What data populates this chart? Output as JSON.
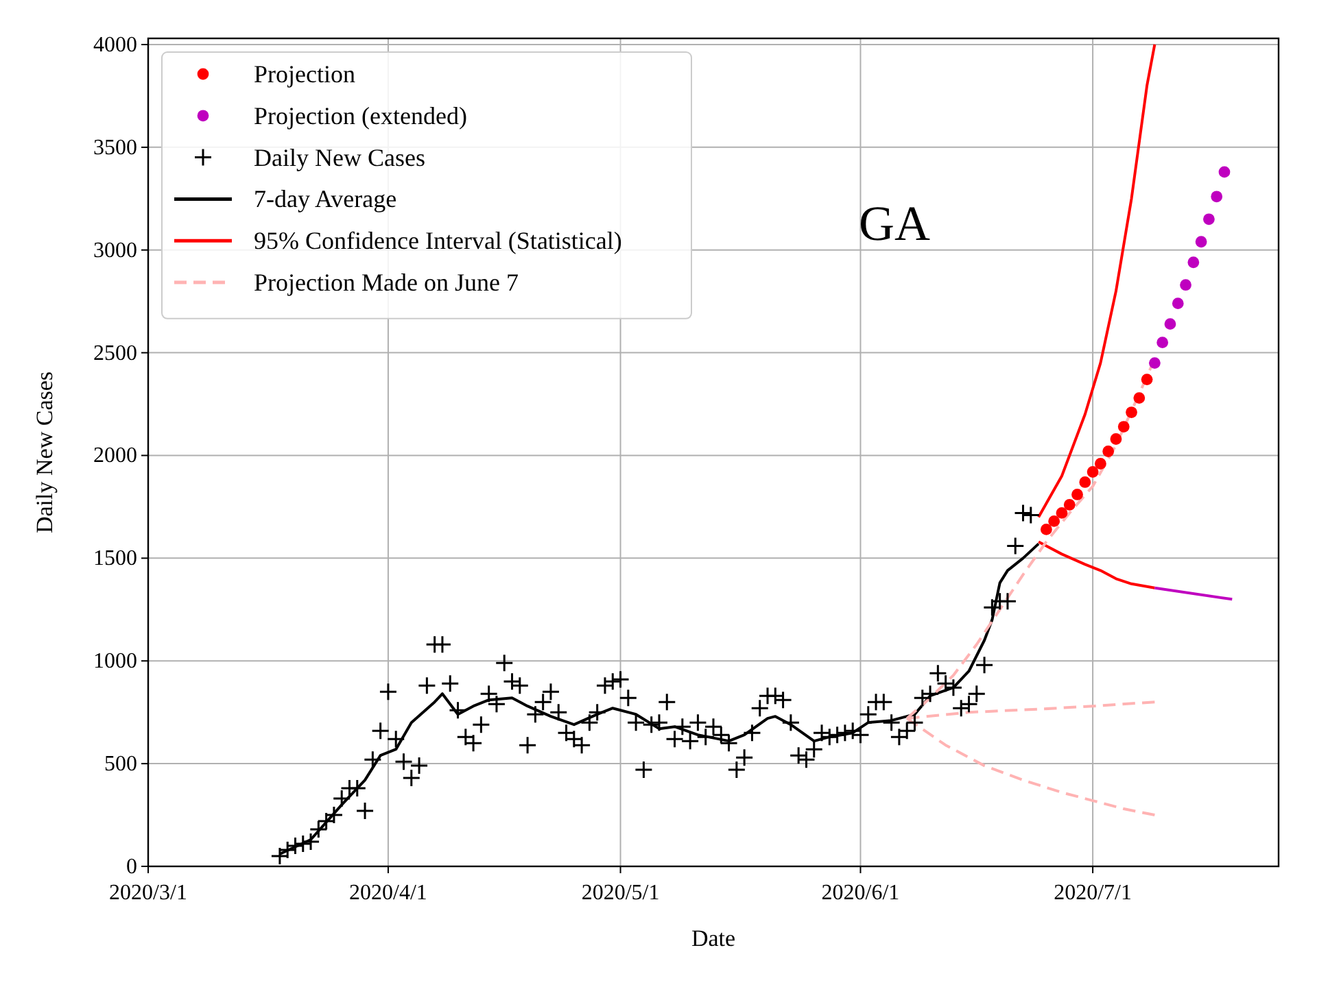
{
  "chart_data": {
    "type": "line",
    "xlabel": "Date",
    "ylabel": "Daily New Cases",
    "annotations": [
      "GA"
    ],
    "xlim": [
      "2020-03-01",
      "2020-07-25"
    ],
    "xticks": [
      {
        "value": "2020-03-01",
        "label": "2020/3/1"
      },
      {
        "value": "2020-04-01",
        "label": "2020/4/1"
      },
      {
        "value": "2020-05-01",
        "label": "2020/5/1"
      },
      {
        "value": "2020-06-01",
        "label": "2020/6/1"
      },
      {
        "value": "2020-07-01",
        "label": "2020/7/1"
      }
    ],
    "ylim": [
      0,
      4030
    ],
    "yticks": [
      0,
      500,
      1000,
      1500,
      2000,
      2500,
      3000,
      3500,
      4000
    ],
    "grid": true,
    "legend": "top left",
    "series": [
      {
        "name": "Projection",
        "type": "scatter",
        "marker": "circle",
        "color": "#ff0000",
        "x": [
          "2020-06-25",
          "2020-06-26",
          "2020-06-27",
          "2020-06-28",
          "2020-06-29",
          "2020-06-30",
          "2020-07-01",
          "2020-07-02",
          "2020-07-03",
          "2020-07-04",
          "2020-07-05",
          "2020-07-06",
          "2020-07-07",
          "2020-07-08"
        ],
        "values": [
          1640,
          1680,
          1720,
          1760,
          1810,
          1870,
          1920,
          1960,
          2020,
          2080,
          2140,
          2210,
          2280,
          2370
        ]
      },
      {
        "name": "Projection (extended)",
        "type": "scatter",
        "marker": "circle",
        "color": "#bf00bf",
        "x": [
          "2020-07-09",
          "2020-07-10",
          "2020-07-11",
          "2020-07-12",
          "2020-07-13",
          "2020-07-14",
          "2020-07-15",
          "2020-07-16",
          "2020-07-17",
          "2020-07-18"
        ],
        "values": [
          2450,
          2550,
          2640,
          2740,
          2830,
          2940,
          3040,
          3150,
          3260,
          3380
        ]
      },
      {
        "name": "Daily New Cases",
        "type": "scatter",
        "marker": "cross",
        "color": "#000000",
        "x": [
          "2020-03-18",
          "2020-03-19",
          "2020-03-20",
          "2020-03-21",
          "2020-03-22",
          "2020-03-23",
          "2020-03-24",
          "2020-03-25",
          "2020-03-26",
          "2020-03-27",
          "2020-03-28",
          "2020-03-29",
          "2020-03-30",
          "2020-03-31",
          "2020-04-01",
          "2020-04-02",
          "2020-04-03",
          "2020-04-04",
          "2020-04-05",
          "2020-04-06",
          "2020-04-07",
          "2020-04-08",
          "2020-04-09",
          "2020-04-10",
          "2020-04-11",
          "2020-04-12",
          "2020-04-13",
          "2020-04-14",
          "2020-04-15",
          "2020-04-16",
          "2020-04-17",
          "2020-04-18",
          "2020-04-19",
          "2020-04-20",
          "2020-04-21",
          "2020-04-22",
          "2020-04-23",
          "2020-04-24",
          "2020-04-25",
          "2020-04-26",
          "2020-04-27",
          "2020-04-28",
          "2020-04-29",
          "2020-04-30",
          "2020-05-01",
          "2020-05-02",
          "2020-05-03",
          "2020-05-04",
          "2020-05-05",
          "2020-05-06",
          "2020-05-07",
          "2020-05-08",
          "2020-05-09",
          "2020-05-10",
          "2020-05-11",
          "2020-05-12",
          "2020-05-13",
          "2020-05-14",
          "2020-05-15",
          "2020-05-16",
          "2020-05-17",
          "2020-05-18",
          "2020-05-19",
          "2020-05-20",
          "2020-05-21",
          "2020-05-22",
          "2020-05-23",
          "2020-05-24",
          "2020-05-25",
          "2020-05-26",
          "2020-05-27",
          "2020-05-28",
          "2020-05-29",
          "2020-05-30",
          "2020-05-31",
          "2020-06-01",
          "2020-06-02",
          "2020-06-03",
          "2020-06-04",
          "2020-06-05",
          "2020-06-06",
          "2020-06-07",
          "2020-06-08",
          "2020-06-09",
          "2020-06-10",
          "2020-06-11",
          "2020-06-12",
          "2020-06-13",
          "2020-06-14",
          "2020-06-15",
          "2020-06-16",
          "2020-06-17",
          "2020-06-18",
          "2020-06-19",
          "2020-06-20",
          "2020-06-21",
          "2020-06-22",
          "2020-06-23"
        ],
        "values": [
          50,
          80,
          100,
          110,
          120,
          180,
          220,
          250,
          330,
          380,
          380,
          270,
          520,
          660,
          850,
          620,
          510,
          430,
          490,
          880,
          1080,
          1080,
          890,
          760,
          630,
          600,
          690,
          840,
          790,
          990,
          900,
          880,
          590,
          740,
          800,
          850,
          750,
          650,
          620,
          590,
          700,
          750,
          880,
          900,
          910,
          820,
          700,
          470,
          690,
          700,
          800,
          620,
          680,
          610,
          700,
          630,
          680,
          640,
          600,
          470,
          530,
          650,
          770,
          830,
          830,
          810,
          700,
          540,
          520,
          570,
          650,
          630,
          640,
          650,
          660,
          640,
          740,
          800,
          800,
          700,
          630,
          660,
          700,
          820,
          840,
          940,
          890,
          870,
          770,
          790,
          840,
          980,
          1260,
          1290,
          1290,
          1560,
          1720,
          1710
        ]
      },
      {
        "name": "7-day Average",
        "line_style": "solid",
        "color": "#000000",
        "x": [
          "2020-03-18",
          "2020-03-22",
          "2020-03-26",
          "2020-03-29",
          "2020-03-31",
          "2020-04-02",
          "2020-04-04",
          "2020-04-07",
          "2020-04-08",
          "2020-04-10",
          "2020-04-12",
          "2020-04-14",
          "2020-04-17",
          "2020-04-19",
          "2020-04-22",
          "2020-04-25",
          "2020-04-28",
          "2020-04-30",
          "2020-05-03",
          "2020-05-06",
          "2020-05-08",
          "2020-05-11",
          "2020-05-15",
          "2020-05-17",
          "2020-05-20",
          "2020-05-21",
          "2020-05-23",
          "2020-05-26",
          "2020-05-28",
          "2020-05-31",
          "2020-06-02",
          "2020-06-05",
          "2020-06-08",
          "2020-06-10",
          "2020-06-13",
          "2020-06-15",
          "2020-06-17",
          "2020-06-18",
          "2020-06-19",
          "2020-06-20",
          "2020-06-22",
          "2020-06-24"
        ],
        "values": [
          60,
          130,
          300,
          420,
          540,
          570,
          700,
          800,
          840,
          740,
          780,
          810,
          820,
          780,
          730,
          690,
          740,
          770,
          740,
          670,
          680,
          640,
          610,
          640,
          720,
          730,
          690,
          610,
          630,
          650,
          700,
          710,
          740,
          830,
          870,
          950,
          1100,
          1200,
          1380,
          1440,
          1500,
          1570
        ]
      },
      {
        "name": "95% Confidence Interval (Statistical)",
        "line_style": "solid",
        "color": "#ff0000",
        "x": [
          "2020-06-24",
          "2020-06-27",
          "2020-06-30",
          "2020-07-02",
          "2020-07-04",
          "2020-07-06",
          "2020-07-08",
          "2020-07-09"
        ],
        "values": [
          1700,
          1900,
          2200,
          2450,
          2800,
          3250,
          3800,
          4000
        ]
      },
      {
        "line_style": "solid",
        "color": "#ff0000",
        "x": [
          "2020-06-24",
          "2020-06-27",
          "2020-06-30",
          "2020-07-02",
          "2020-07-04",
          "2020-07-06",
          "2020-07-09"
        ],
        "values": [
          1580,
          1520,
          1470,
          1440,
          1400,
          1375,
          1355
        ]
      },
      {
        "line_style": "solid",
        "color": "#bf00bf",
        "x": [
          "2020-07-09",
          "2020-07-19"
        ],
        "values": [
          1355,
          1300
        ]
      },
      {
        "name": "Projection Made on June 7",
        "line_style": "dashed",
        "color": "#ffb3b3",
        "x": [
          "2020-06-07",
          "2020-06-10",
          "2020-06-13",
          "2020-06-16",
          "2020-06-19",
          "2020-06-22",
          "2020-06-25",
          "2020-06-28",
          "2020-07-01",
          "2020-07-04",
          "2020-07-07",
          "2020-07-09"
        ],
        "values": [
          720,
          820,
          930,
          1080,
          1250,
          1420,
          1580,
          1720,
          1850,
          2050,
          2300,
          2470
        ]
      },
      {
        "line_style": "dashed",
        "color": "#ffb3b3",
        "x": [
          "2020-06-07",
          "2020-06-15",
          "2020-06-24",
          "2020-07-01",
          "2020-07-09"
        ],
        "values": [
          720,
          750,
          765,
          780,
          800
        ]
      },
      {
        "line_style": "dashed",
        "color": "#ffb3b3",
        "x": [
          "2020-06-07",
          "2020-06-12",
          "2020-06-17",
          "2020-06-22",
          "2020-06-27",
          "2020-07-01",
          "2020-07-05",
          "2020-07-09"
        ],
        "values": [
          720,
          590,
          490,
          420,
          360,
          320,
          280,
          250
        ]
      }
    ]
  }
}
